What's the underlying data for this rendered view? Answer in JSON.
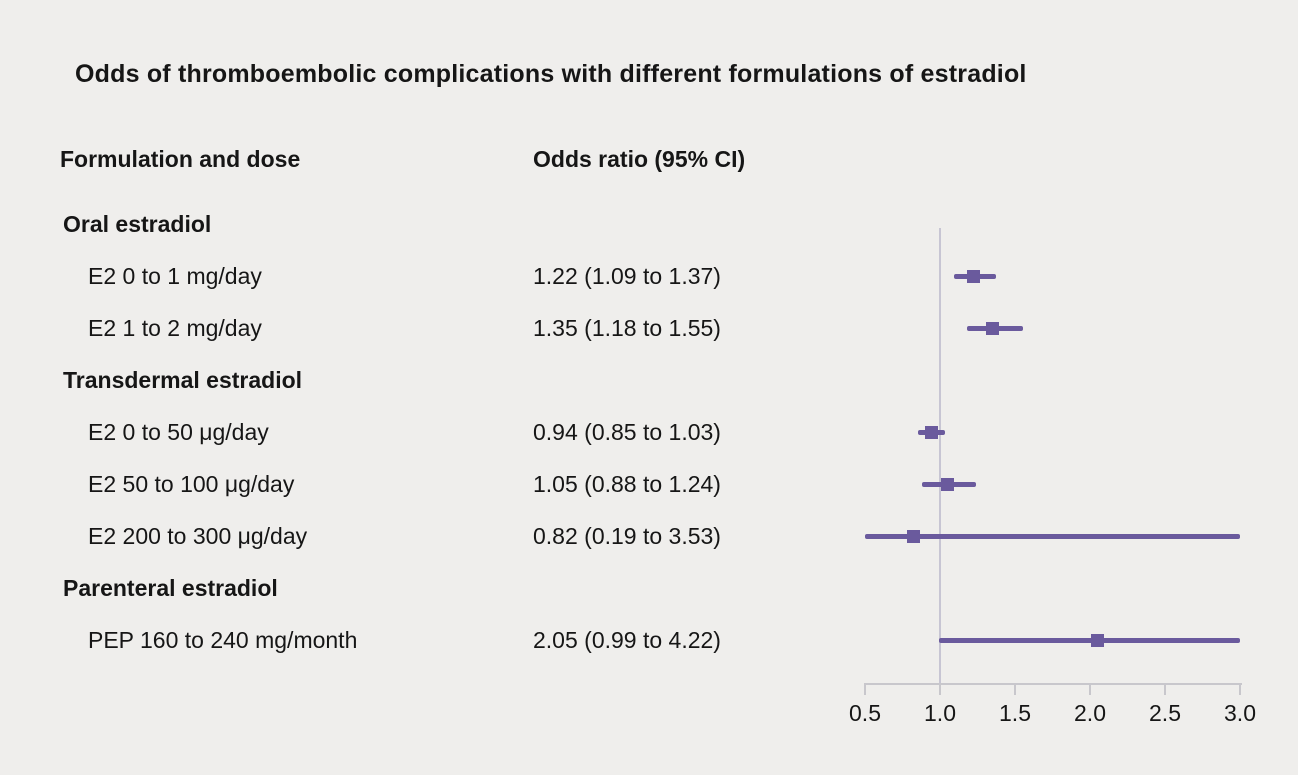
{
  "title": "Odds of thromboembolic complications with different formulations of estradiol",
  "columns": {
    "formulation": "Formulation and dose",
    "odds_ratio": "Odds ratio (95% CI)"
  },
  "colors": {
    "marker": "#6a5a9d",
    "axis": "#c8c7cc",
    "refline": "#c7c5d3",
    "background": "#efeeec",
    "text": "#161616"
  },
  "chart_data": {
    "type": "forest",
    "title": "Odds of thromboembolic complications with different formulations of estradiol",
    "xlim": [
      0.5,
      3.0
    ],
    "reference_line": 1.0,
    "x_ticks": [
      {
        "value": 0.5,
        "label": "0.5"
      },
      {
        "value": 1.0,
        "label": "1.0"
      },
      {
        "value": 1.5,
        "label": "1.5"
      },
      {
        "value": 2.0,
        "label": "2.0"
      },
      {
        "value": 2.5,
        "label": "2.5"
      },
      {
        "value": 3.0,
        "label": "3.0"
      }
    ],
    "groups": [
      {
        "label": "Oral estradiol",
        "rows": [
          {
            "label": "E2 0 to 1 mg/day",
            "or_text": "1.22 (1.09 to 1.37)",
            "or": 1.22,
            "ci_low": 1.09,
            "ci_high": 1.37
          },
          {
            "label": "E2 1 to 2 mg/day",
            "or_text": "1.35 (1.18 to 1.55)",
            "or": 1.35,
            "ci_low": 1.18,
            "ci_high": 1.55
          }
        ]
      },
      {
        "label": "Transdermal estradiol",
        "rows": [
          {
            "label": "E2 0 to 50 μg/day",
            "or_text": "0.94 (0.85 to 1.03)",
            "or": 0.94,
            "ci_low": 0.85,
            "ci_high": 1.03
          },
          {
            "label": "E2 50 to 100 μg/day",
            "or_text": "1.05 (0.88 to 1.24)",
            "or": 1.05,
            "ci_low": 0.88,
            "ci_high": 1.24
          },
          {
            "label": "E2 200 to 300 μg/day",
            "or_text": "0.82 (0.19 to 3.53)",
            "or": 0.82,
            "ci_low": 0.19,
            "ci_high": 3.53
          }
        ]
      },
      {
        "label": "Parenteral estradiol",
        "rows": [
          {
            "label": "PEP 160 to 240 mg/month",
            "or_text": "2.05 (0.99 to 4.22)",
            "or": 2.05,
            "ci_low": 0.99,
            "ci_high": 4.22
          }
        ]
      }
    ]
  }
}
